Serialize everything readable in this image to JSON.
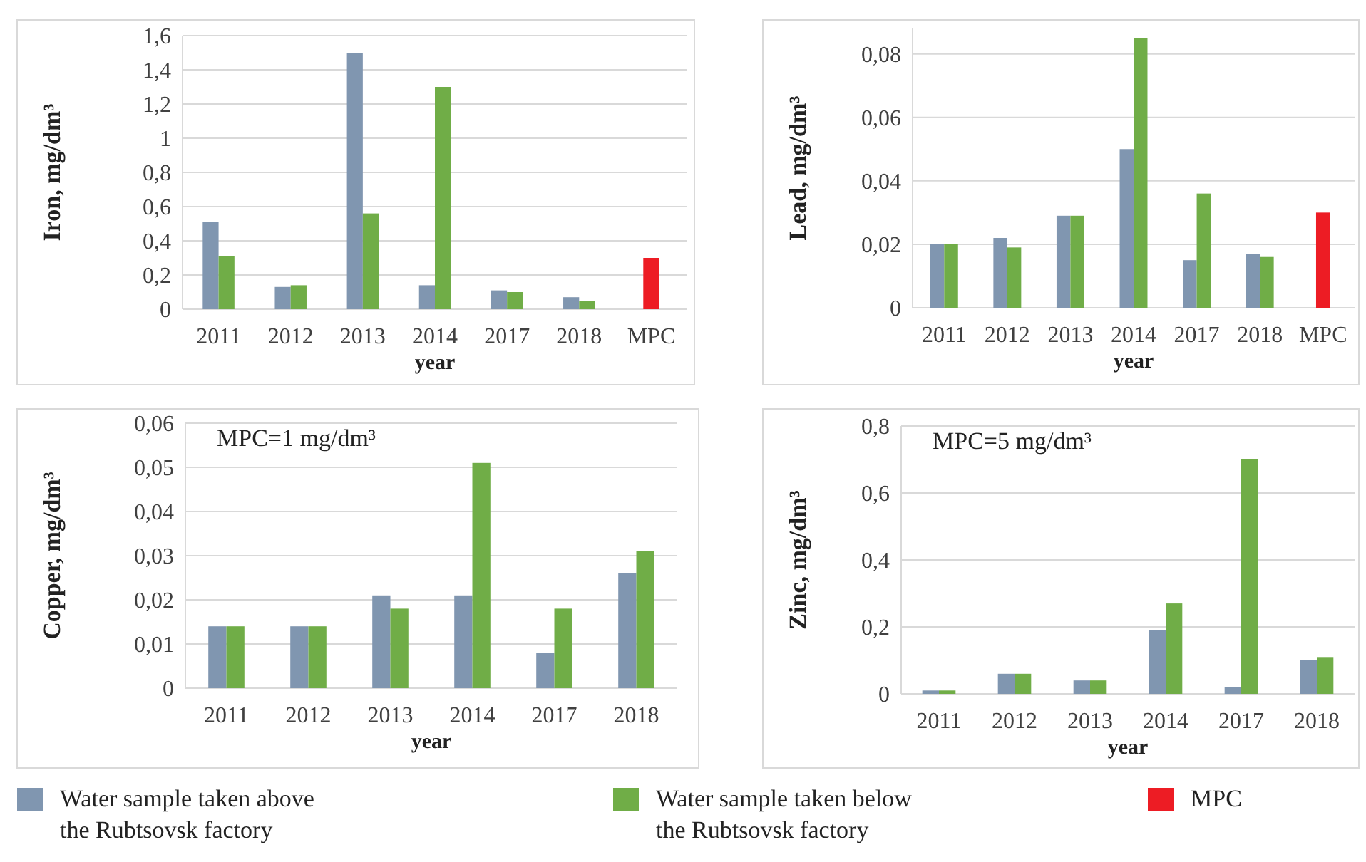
{
  "chart_data": [
    {
      "type": "bar",
      "ylabel": "Iron, mg/dm³",
      "xlabel": "year",
      "categories": [
        "2011",
        "2012",
        "2013",
        "2014",
        "2017",
        "2018",
        "MPC"
      ],
      "ylim": [
        0,
        1.6
      ],
      "yticks": [
        {
          "value": 0,
          "label": "0"
        },
        {
          "value": 0.2,
          "label": "0,2"
        },
        {
          "value": 0.4,
          "label": "0,4"
        },
        {
          "value": 0.6,
          "label": "0,6"
        },
        {
          "value": 0.8,
          "label": "0,8"
        },
        {
          "value": 1,
          "label": "1"
        },
        {
          "value": 1.2,
          "label": "1,2"
        },
        {
          "value": 1.4,
          "label": "1,4"
        },
        {
          "value": 1.6,
          "label": "1,6"
        }
      ],
      "grid": "y",
      "legend": "bottom",
      "series": [
        {
          "name": "Water sample taken above the Rubtsovsk factory",
          "color": "#8096b0",
          "values": [
            0.51,
            0.13,
            1.5,
            0.14,
            0.11,
            0.07,
            null
          ]
        },
        {
          "name": "Water sample taken below the Rubtsovsk factory",
          "color": "#70ad47",
          "values": [
            0.31,
            0.14,
            0.56,
            1.3,
            0.1,
            0.05,
            null
          ]
        },
        {
          "name": "MPC",
          "color": "#ed1c24",
          "values": [
            null,
            null,
            null,
            null,
            null,
            null,
            0.3
          ]
        }
      ]
    },
    {
      "type": "bar",
      "ylabel": "Lead, mg/dm³",
      "xlabel": "year",
      "categories": [
        "2011",
        "2012",
        "2013",
        "2014",
        "2017",
        "2018",
        "MPC"
      ],
      "ylim": [
        0,
        0.088
      ],
      "yticks": [
        {
          "value": 0,
          "label": "0"
        },
        {
          "value": 0.02,
          "label": "0,02"
        },
        {
          "value": 0.04,
          "label": "0,04"
        },
        {
          "value": 0.06,
          "label": "0,06"
        },
        {
          "value": 0.08,
          "label": "0,08"
        }
      ],
      "grid": "y",
      "series": [
        {
          "color": "#8096b0",
          "values": [
            0.02,
            0.022,
            0.029,
            0.05,
            0.015,
            0.017,
            null
          ]
        },
        {
          "color": "#70ad47",
          "values": [
            0.02,
            0.019,
            0.029,
            0.085,
            0.036,
            0.016,
            null
          ]
        },
        {
          "color": "#ed1c24",
          "values": [
            null,
            null,
            null,
            null,
            null,
            null,
            0.03
          ]
        }
      ]
    },
    {
      "type": "bar",
      "ylabel": "Copper, mg/dm³",
      "xlabel": "year",
      "categories": [
        "2011",
        "2012",
        "2013",
        "2014",
        "2017",
        "2018"
      ],
      "ylim": [
        0,
        0.06
      ],
      "yticks": [
        {
          "value": 0,
          "label": "0"
        },
        {
          "value": 0.01,
          "label": "0,01"
        },
        {
          "value": 0.02,
          "label": "0,02"
        },
        {
          "value": 0.03,
          "label": "0,03"
        },
        {
          "value": 0.04,
          "label": "0,04"
        },
        {
          "value": 0.05,
          "label": "0,05"
        },
        {
          "value": 0.06,
          "label": "0,06"
        }
      ],
      "grid": "y",
      "annotations": [
        "MPC=1 mg/dm³"
      ],
      "series": [
        {
          "color": "#8096b0",
          "values": [
            0.014,
            0.014,
            0.021,
            0.021,
            0.008,
            0.026
          ]
        },
        {
          "color": "#70ad47",
          "values": [
            0.014,
            0.014,
            0.018,
            0.051,
            0.018,
            0.031
          ]
        }
      ]
    },
    {
      "type": "bar",
      "ylabel": "Zinc, mg/dm³",
      "xlabel": "year",
      "categories": [
        "2011",
        "2012",
        "2013",
        "2014",
        "2017",
        "2018"
      ],
      "ylim": [
        0,
        0.8
      ],
      "yticks": [
        {
          "value": 0,
          "label": "0"
        },
        {
          "value": 0.2,
          "label": "0,2"
        },
        {
          "value": 0.4,
          "label": "0,4"
        },
        {
          "value": 0.6,
          "label": "0,6"
        },
        {
          "value": 0.8,
          "label": "0,8"
        }
      ],
      "grid": "y",
      "annotations": [
        "MPC=5 mg/dm³"
      ],
      "series": [
        {
          "color": "#8096b0",
          "values": [
            0.01,
            0.06,
            0.04,
            0.19,
            0.02,
            0.1
          ]
        },
        {
          "color": "#70ad47",
          "values": [
            0.01,
            0.06,
            0.04,
            0.27,
            0.7,
            0.11
          ]
        }
      ]
    }
  ]
}
